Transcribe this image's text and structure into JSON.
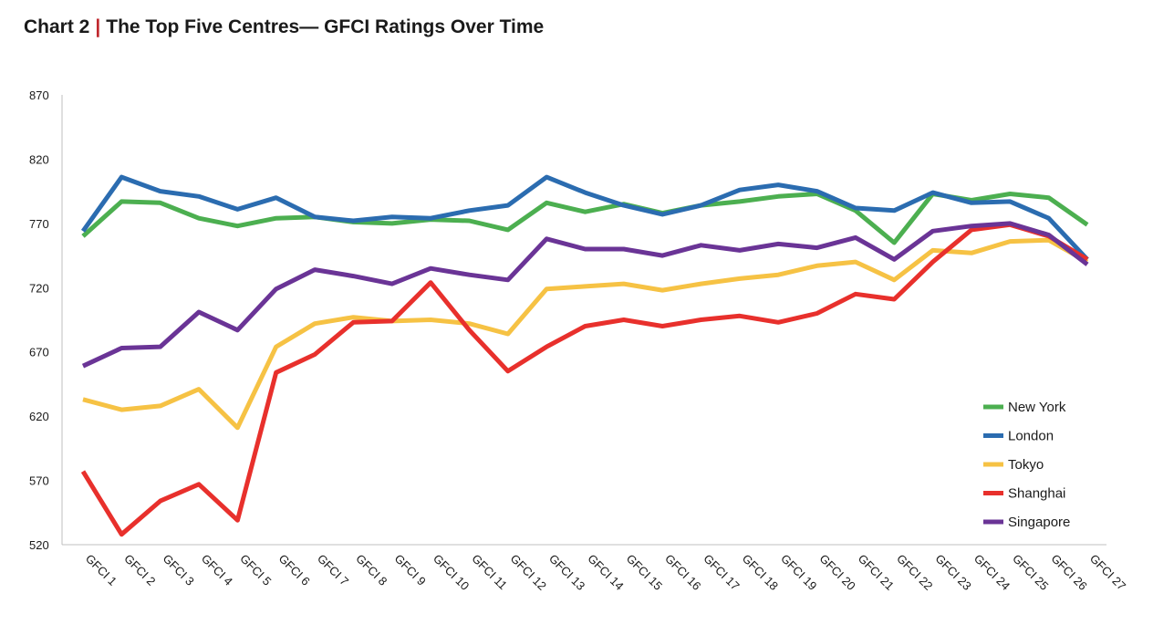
{
  "header": {
    "chart_number": "Chart 2",
    "separator": "|",
    "title": "The Top Five Centres— GFCI Ratings Over Time"
  },
  "chart_data": {
    "type": "line",
    "title": "The Top Five Centres— GFCI Ratings Over Time",
    "xlabel": "",
    "ylabel": "",
    "ylim": [
      520,
      870
    ],
    "yticks": [
      520,
      570,
      620,
      670,
      720,
      770,
      820,
      870
    ],
    "grid": false,
    "legend_position": "bottom-right",
    "categories": [
      "GFCI 1",
      "GFCI 2",
      "GFCI 3",
      "GFCI 4",
      "GFCI 5",
      "GFCI 6",
      "GFCI 7",
      "GFCI 8",
      "GFCI 9",
      "GFCI 10",
      "GFCI 11",
      "GFCI 12",
      "GFCI 13",
      "GFCI 14",
      "GFCI 15",
      "GFCI 16",
      "GFCI 17",
      "GFCI 18",
      "GFCI 19",
      "GFCI 20",
      "GFCI 21",
      "GFCI 22",
      "GFCI 23",
      "GFCI 24",
      "GFCI 25",
      "GFCI 26",
      "GFCI 27"
    ],
    "series": [
      {
        "name": "New York",
        "color": "#4caf50",
        "values": [
          760,
          787,
          786,
          774,
          768,
          774,
          775,
          771,
          770,
          773,
          772,
          765,
          786,
          779,
          785,
          778,
          784,
          787,
          791,
          793,
          780,
          755,
          793,
          788,
          793,
          790,
          769
        ]
      },
      {
        "name": "London",
        "color": "#2b6cb0",
        "values": [
          764,
          806,
          795,
          791,
          781,
          790,
          775,
          772,
          775,
          774,
          780,
          784,
          806,
          794,
          784,
          777,
          784,
          796,
          800,
          795,
          782,
          780,
          794,
          786,
          787,
          774,
          742
        ]
      },
      {
        "name": "Tokyo",
        "color": "#f6c244",
        "values": [
          633,
          625,
          628,
          641,
          611,
          674,
          692,
          697,
          694,
          695,
          692,
          684,
          719,
          721,
          723,
          718,
          723,
          727,
          730,
          737,
          740,
          726,
          749,
          747,
          756,
          757,
          740
        ]
      },
      {
        "name": "Shanghai",
        "color": "#e8302c",
        "values": [
          577,
          528,
          554,
          567,
          539,
          654,
          668,
          693,
          694,
          724,
          687,
          655,
          674,
          690,
          695,
          690,
          695,
          698,
          693,
          700,
          715,
          711,
          740,
          765,
          769,
          760,
          742
        ]
      },
      {
        "name": "Singapore",
        "color": "#6a3496",
        "values": [
          659,
          673,
          674,
          701,
          687,
          719,
          734,
          729,
          723,
          735,
          730,
          726,
          758,
          750,
          750,
          745,
          753,
          749,
          754,
          751,
          759,
          742,
          764,
          768,
          770,
          761,
          738
        ]
      }
    ]
  }
}
